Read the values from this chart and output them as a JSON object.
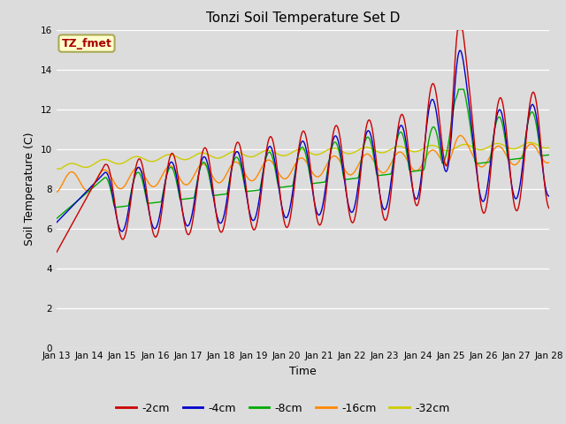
{
  "title": "Tonzi Soil Temperature Set D",
  "xlabel": "Time",
  "ylabel": "Soil Temperature (C)",
  "annotation": "TZ_fmet",
  "annotation_color": "#aa0000",
  "annotation_bg": "#ffffcc",
  "annotation_border": "#aaa855",
  "ylim": [
    0,
    16
  ],
  "yticks": [
    0,
    2,
    4,
    6,
    8,
    10,
    12,
    14,
    16
  ],
  "plot_bg": "#dcdcdc",
  "fig_bg": "#dcdcdc",
  "series_colors": [
    "#cc0000",
    "#0000cc",
    "#00aa00",
    "#ff8800",
    "#cccc00"
  ],
  "series_labels": [
    "-2cm",
    "-4cm",
    "-8cm",
    "-16cm",
    "-32cm"
  ],
  "x_tick_labels": [
    "Jan 13",
    "Jan 14",
    "Jan 15",
    "Jan 16",
    "Jan 17",
    "Jan 18",
    "Jan 19",
    "Jan 20",
    "Jan 21",
    "Jan 22",
    "Jan 23",
    "Jan 24",
    "Jan 25",
    "Jan 26",
    "Jan 27",
    "Jan 28"
  ]
}
